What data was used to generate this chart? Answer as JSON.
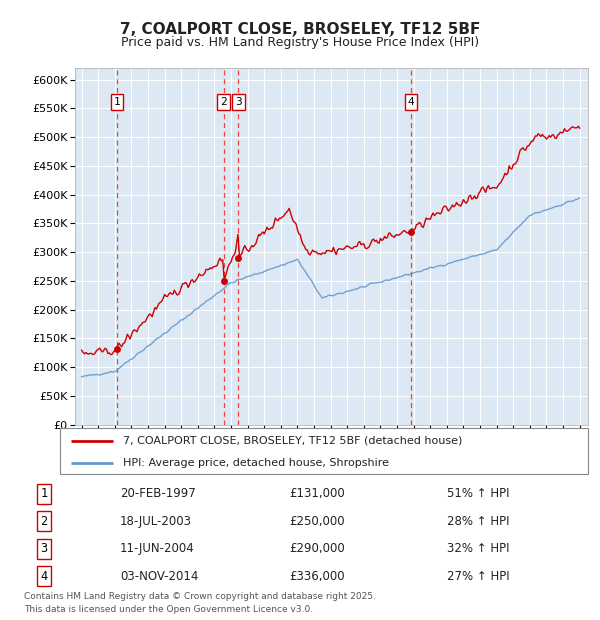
{
  "title": "7, COALPORT CLOSE, BROSELEY, TF12 5BF",
  "subtitle": "Price paid vs. HM Land Registry's House Price Index (HPI)",
  "title_fontsize": 11,
  "subtitle_fontsize": 9,
  "plot_bg_color": "#dce9f5",
  "red_line_color": "#cc0000",
  "blue_line_color": "#6699cc",
  "grid_color": "#ffffff",
  "vline_color": "#ee4444",
  "marker_color": "#cc0000",
  "ylim": [
    0,
    620000
  ],
  "yticks": [
    0,
    50000,
    100000,
    150000,
    200000,
    250000,
    300000,
    350000,
    400000,
    450000,
    500000,
    550000,
    600000
  ],
  "xlim_start": 1994.6,
  "xlim_end": 2025.5,
  "transactions": [
    {
      "label": "1",
      "year": 1997.13,
      "price": 131000,
      "date_str": "20-FEB-1997",
      "pct": "51%",
      "dir": "↑"
    },
    {
      "label": "2",
      "year": 2003.55,
      "price": 250000,
      "date_str": "18-JUL-2003",
      "pct": "28%",
      "dir": "↑"
    },
    {
      "label": "3",
      "year": 2004.44,
      "price": 290000,
      "date_str": "11-JUN-2004",
      "pct": "32%",
      "dir": "↑"
    },
    {
      "label": "4",
      "year": 2014.84,
      "price": 336000,
      "date_str": "03-NOV-2014",
      "pct": "27%",
      "dir": "↑"
    }
  ],
  "legend_line1": "7, COALPORT CLOSE, BROSELEY, TF12 5BF (detached house)",
  "legend_line2": "HPI: Average price, detached house, Shropshire",
  "footer_line1": "Contains HM Land Registry data © Crown copyright and database right 2025.",
  "footer_line2": "This data is licensed under the Open Government Licence v3.0."
}
